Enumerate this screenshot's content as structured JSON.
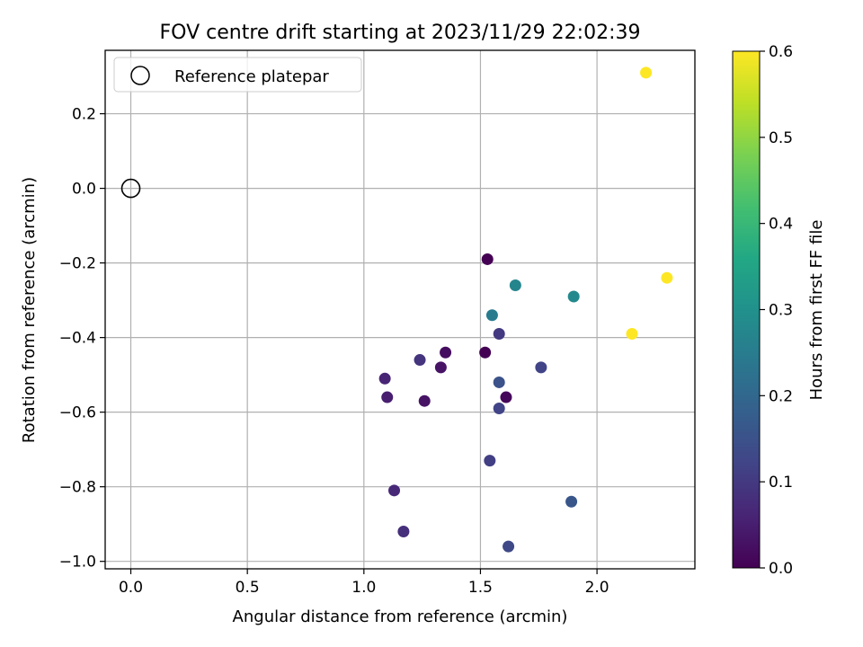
{
  "chart_data": {
    "type": "scatter",
    "title": "FOV centre drift starting at 2023/11/29 22:02:39",
    "xlabel": "Angular distance from reference (arcmin)",
    "ylabel": "Rotation from reference (arcmin)",
    "xlim": [
      -0.11,
      2.42
    ],
    "ylim": [
      -1.02,
      0.37
    ],
    "xticks": [
      0.0,
      0.5,
      1.0,
      1.5,
      2.0
    ],
    "xtick_labels": [
      "0.0",
      "0.5",
      "1.0",
      "1.5",
      "2.0"
    ],
    "yticks": [
      -1.0,
      -0.8,
      -0.6,
      -0.4,
      -0.2,
      0.0,
      0.2
    ],
    "ytick_labels": [
      "−1.0",
      "−0.8",
      "−0.6",
      "−0.4",
      "−0.2",
      "0.0",
      "0.2"
    ],
    "grid": true,
    "legend": {
      "placement": "top-left",
      "entries": [
        {
          "label": "Reference platepar",
          "marker": "open-circle",
          "color": "#000000"
        }
      ]
    },
    "reference_point": {
      "x": 0.0,
      "y": 0.0
    },
    "colorbar": {
      "label": "Hours from first FF file",
      "colormap": "viridis",
      "range": [
        0.0,
        0.6
      ],
      "ticks": [
        0.0,
        0.1,
        0.2,
        0.3,
        0.4,
        0.5,
        0.6
      ],
      "tick_labels": [
        "0.0",
        "0.1",
        "0.2",
        "0.3",
        "0.4",
        "0.5",
        "0.6"
      ]
    },
    "points": [
      {
        "x": 1.53,
        "y": -0.19,
        "c": 0.0
      },
      {
        "x": 1.52,
        "y": -0.44,
        "c": 0.0
      },
      {
        "x": 1.61,
        "y": -0.56,
        "c": 0.01
      },
      {
        "x": 1.35,
        "y": -0.44,
        "c": 0.02
      },
      {
        "x": 1.33,
        "y": -0.48,
        "c": 0.03
      },
      {
        "x": 1.26,
        "y": -0.57,
        "c": 0.03
      },
      {
        "x": 1.1,
        "y": -0.56,
        "c": 0.05
      },
      {
        "x": 1.09,
        "y": -0.51,
        "c": 0.06
      },
      {
        "x": 1.13,
        "y": -0.81,
        "c": 0.07
      },
      {
        "x": 1.17,
        "y": -0.92,
        "c": 0.08
      },
      {
        "x": 1.24,
        "y": -0.46,
        "c": 0.09
      },
      {
        "x": 1.58,
        "y": -0.39,
        "c": 0.1
      },
      {
        "x": 1.54,
        "y": -0.73,
        "c": 0.11
      },
      {
        "x": 1.58,
        "y": -0.59,
        "c": 0.12
      },
      {
        "x": 1.76,
        "y": -0.48,
        "c": 0.12
      },
      {
        "x": 1.62,
        "y": -0.96,
        "c": 0.13
      },
      {
        "x": 1.58,
        "y": -0.52,
        "c": 0.15
      },
      {
        "x": 1.89,
        "y": -0.84,
        "c": 0.16
      },
      {
        "x": 1.55,
        "y": -0.34,
        "c": 0.25
      },
      {
        "x": 1.65,
        "y": -0.26,
        "c": 0.27
      },
      {
        "x": 1.9,
        "y": -0.29,
        "c": 0.28
      },
      {
        "x": 2.15,
        "y": -0.39,
        "c": 0.6
      },
      {
        "x": 2.3,
        "y": -0.24,
        "c": 0.6
      },
      {
        "x": 2.21,
        "y": 0.31,
        "c": 0.6
      }
    ]
  }
}
